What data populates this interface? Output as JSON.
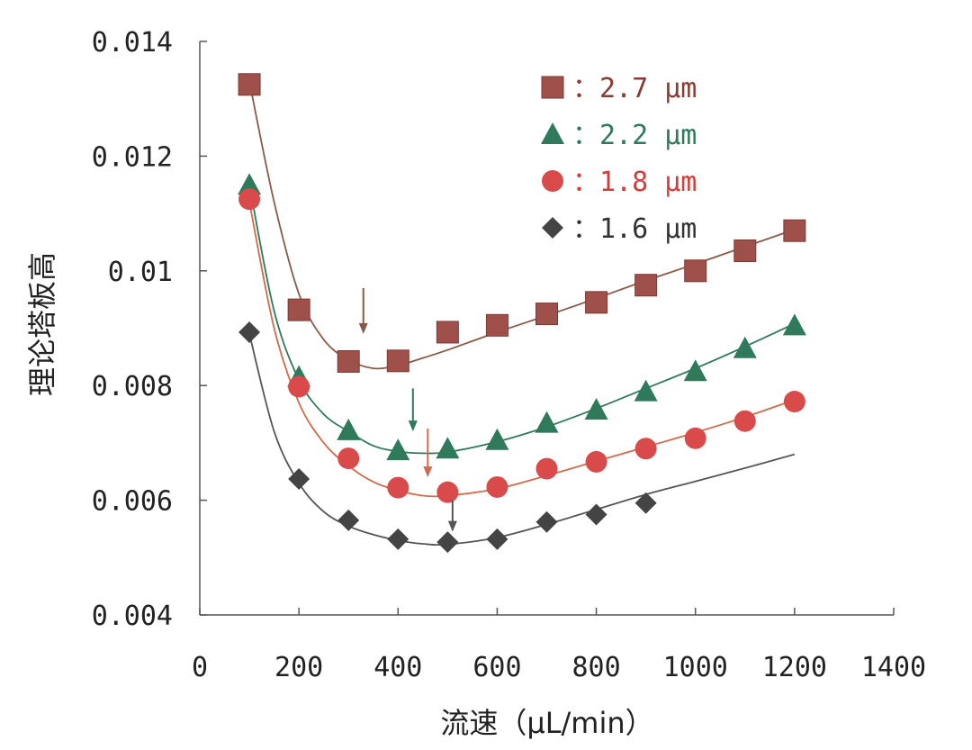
{
  "chart_data": {
    "type": "scatter",
    "title": "",
    "xlabel": "流速（μL/min）",
    "ylabel": "理论塔板高",
    "xlim": [
      0,
      1400
    ],
    "ylim": [
      0.004,
      0.014
    ],
    "x_ticks": [
      0,
      200,
      400,
      600,
      800,
      1000,
      1200,
      1400
    ],
    "x_tick_labels": [
      "0",
      "200",
      "400",
      "600",
      "800",
      "1000",
      "1200",
      "1400"
    ],
    "y_ticks": [
      0.004,
      0.006,
      0.008,
      0.01,
      0.012,
      0.014
    ],
    "y_tick_labels": [
      "0.004",
      "0.006",
      "0.008",
      "0.01",
      "0.012",
      "0.014"
    ],
    "grid": false,
    "legend_position": "top-right",
    "series": [
      {
        "label": "：2.7 μm",
        "marker": "square",
        "marker_color": "#a0504a",
        "text_color": "#8b3a30",
        "line_color": "#8a5a48",
        "x": [
          100,
          200,
          300,
          400,
          500,
          600,
          700,
          800,
          900,
          1000,
          1100,
          1200
        ],
        "y": [
          0.01325,
          0.00932,
          0.00842,
          0.00843,
          0.00893,
          0.00905,
          0.00925,
          0.00945,
          0.00975,
          0.01,
          0.01035,
          0.0107
        ],
        "fit": [
          [
            100,
            0.0133
          ],
          [
            150,
            0.0112
          ],
          [
            200,
            0.0096
          ],
          [
            250,
            0.0088
          ],
          [
            300,
            0.00845
          ],
          [
            350,
            0.0083
          ],
          [
            400,
            0.00835
          ],
          [
            450,
            0.00848
          ],
          [
            500,
            0.00862
          ],
          [
            600,
            0.00893
          ],
          [
            700,
            0.00922
          ],
          [
            800,
            0.00952
          ],
          [
            900,
            0.00983
          ],
          [
            1000,
            0.01012
          ],
          [
            1100,
            0.01042
          ],
          [
            1200,
            0.01072
          ]
        ],
        "optimum_arrow_x": 330,
        "optimum_arrow_y": [
          0.0097,
          0.0089
        ]
      },
      {
        "label": "：2.2 μm",
        "marker": "triangle",
        "marker_color": "#2e7a5a",
        "text_color": "#2e7a5a",
        "line_color": "#2e7a5a",
        "x": [
          100,
          200,
          300,
          400,
          500,
          600,
          700,
          800,
          900,
          1000,
          1100,
          1200
        ],
        "y": [
          0.0115,
          0.00815,
          0.00722,
          0.00687,
          0.0069,
          0.00705,
          0.00735,
          0.00758,
          0.0079,
          0.00825,
          0.00865,
          0.00905
        ],
        "fit": [
          [
            100,
            0.0115
          ],
          [
            150,
            0.0093
          ],
          [
            200,
            0.0081
          ],
          [
            250,
            0.0075
          ],
          [
            300,
            0.0072
          ],
          [
            350,
            0.00695
          ],
          [
            400,
            0.00685
          ],
          [
            450,
            0.00682
          ],
          [
            500,
            0.00684
          ],
          [
            600,
            0.00702
          ],
          [
            700,
            0.00728
          ],
          [
            800,
            0.0076
          ],
          [
            900,
            0.00795
          ],
          [
            1000,
            0.0083
          ],
          [
            1100,
            0.00868
          ],
          [
            1200,
            0.00908
          ]
        ],
        "optimum_arrow_x": 430,
        "optimum_arrow_y": [
          0.00795,
          0.0072
        ]
      },
      {
        "label": "：1.8 μm",
        "marker": "circle",
        "marker_color": "#d94b4b",
        "text_color": "#d93a3a",
        "line_color": "#d06a4a",
        "x": [
          100,
          200,
          300,
          400,
          500,
          600,
          700,
          800,
          900,
          1000,
          1100,
          1200
        ],
        "y": [
          0.01125,
          0.00798,
          0.00673,
          0.00622,
          0.00614,
          0.00623,
          0.00655,
          0.00667,
          0.0069,
          0.00708,
          0.00738,
          0.00772
        ],
        "fit": [
          [
            100,
            0.0112
          ],
          [
            150,
            0.009
          ],
          [
            200,
            0.0077
          ],
          [
            250,
            0.007
          ],
          [
            300,
            0.0066
          ],
          [
            350,
            0.00632
          ],
          [
            400,
            0.00617
          ],
          [
            450,
            0.00608
          ],
          [
            500,
            0.00608
          ],
          [
            600,
            0.0062
          ],
          [
            700,
            0.00643
          ],
          [
            800,
            0.00668
          ],
          [
            900,
            0.00693
          ],
          [
            1000,
            0.00718
          ],
          [
            1100,
            0.00745
          ],
          [
            1200,
            0.00775
          ]
        ],
        "optimum_arrow_x": 460,
        "optimum_arrow_y": [
          0.00725,
          0.0064
        ]
      },
      {
        "label": "：1.6 μm",
        "marker": "diamond",
        "marker_color": "#444444",
        "text_color": "#333333",
        "line_color": "#555555",
        "x": [
          100,
          200,
          300,
          400,
          500,
          600,
          700,
          800,
          900
        ],
        "y": [
          0.00893,
          0.00637,
          0.00565,
          0.00532,
          0.00527,
          0.00532,
          0.00562,
          0.00575,
          0.00595
        ],
        "fit": [
          [
            100,
            0.0089
          ],
          [
            150,
            0.0072
          ],
          [
            200,
            0.0063
          ],
          [
            250,
            0.0058
          ],
          [
            300,
            0.00555
          ],
          [
            350,
            0.0054
          ],
          [
            400,
            0.0053
          ],
          [
            450,
            0.00524
          ],
          [
            500,
            0.00523
          ],
          [
            600,
            0.00535
          ],
          [
            700,
            0.00558
          ],
          [
            800,
            0.00584
          ],
          [
            900,
            0.0061
          ],
          [
            1000,
            0.00633
          ],
          [
            1100,
            0.00656
          ],
          [
            1200,
            0.0068
          ]
        ],
        "optimum_arrow_x": 510,
        "optimum_arrow_y": [
          0.006,
          0.00545
        ]
      }
    ]
  }
}
